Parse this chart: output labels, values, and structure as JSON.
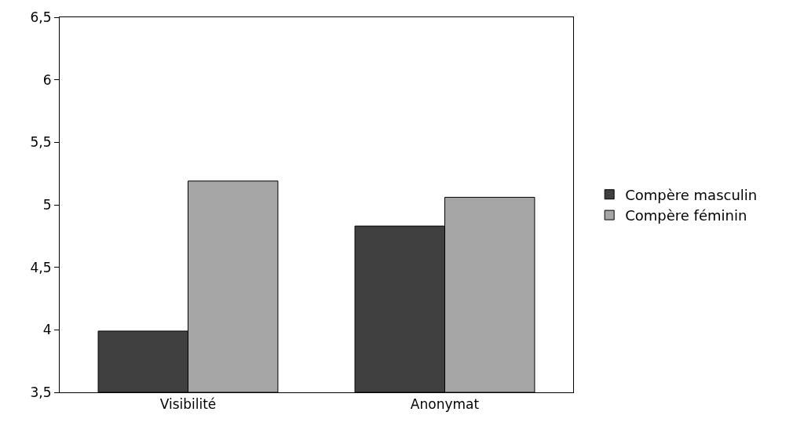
{
  "chart_data": {
    "type": "bar",
    "categories": [
      "Visibilité",
      "Anonymat"
    ],
    "series": [
      {
        "name": "Compère masculin",
        "color": "#404040",
        "values": [
          3.99,
          4.83
        ]
      },
      {
        "name": "Compère féminin",
        "color": "#a6a6a6",
        "values": [
          5.19,
          5.06
        ]
      }
    ],
    "ylim": [
      3.5,
      6.5
    ],
    "yticks": [
      {
        "value": 3.5,
        "label": "3,5"
      },
      4,
      {
        "value": 4.5,
        "label": "4,5"
      },
      5,
      {
        "value": 5.5,
        "label": "5,5"
      },
      6,
      {
        "value": 6.5,
        "label": "6,5"
      }
    ],
    "grid": false,
    "legend": "right"
  }
}
